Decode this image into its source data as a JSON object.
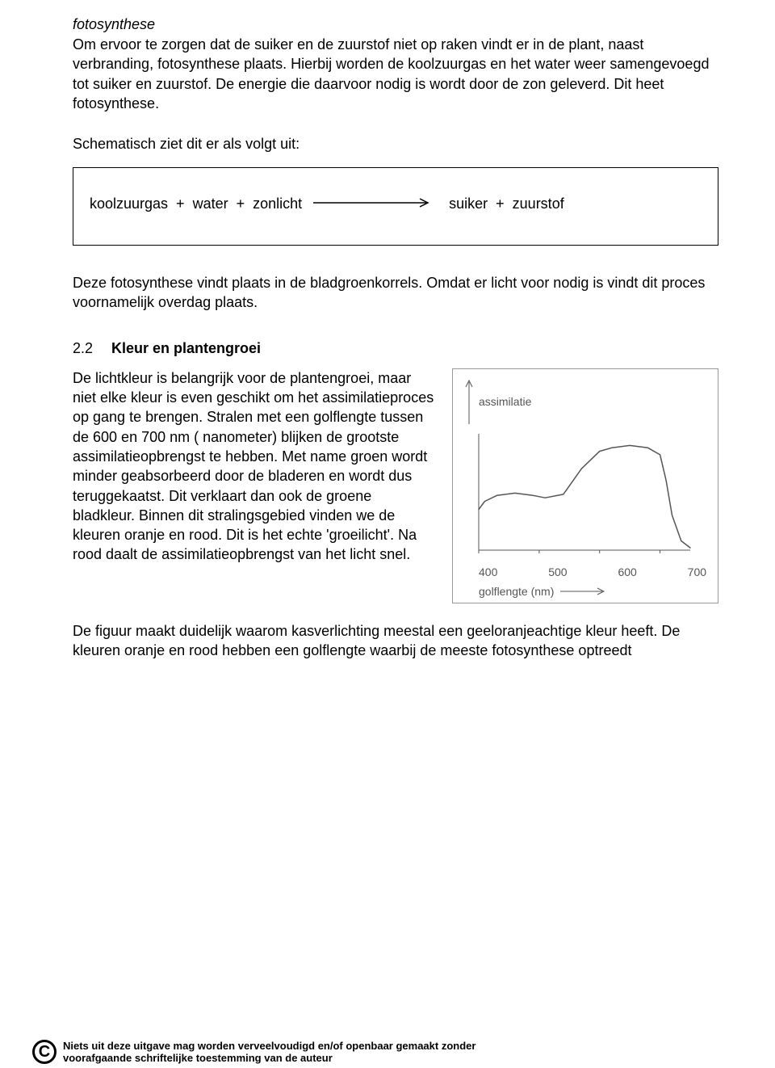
{
  "title": "fotosynthese",
  "intro": "Om ervoor te zorgen dat de suiker en de zuurstof niet op raken vindt er in de plant, naast verbranding, fotosynthese plaats. Hierbij worden de koolzuurgas en het water weer samengevoegd tot suiker en zuurstof. De energie die daarvoor nodig is wordt door de zon geleverd. Dit heet fotosynthese.",
  "schematic_label": "Schematisch ziet dit er als volgt uit:",
  "equation": {
    "left": "koolzuurgas  +  water  +  zonlicht",
    "right": "suiker  +  zuurstof"
  },
  "after_box": "Deze fotosynthese vindt plaats in de bladgroenkorrels. Omdat er licht voor nodig is vindt dit proces voornamelijk overdag plaats.",
  "section": {
    "num": "2.2",
    "title": "Kleur en plantengroei",
    "body": "De lichtkleur is belangrijk voor  de plantengroei, maar niet elke kleur is even geschikt om het assimilatieproces op gang te brengen. Stralen met een golflengte tussen de 600 en 700 nm ( nanometer) blijken de grootste assimilatieopbrengst te hebben. Met name groen wordt minder geabsorbeerd door de bladeren en wordt dus teruggekaatst. Dit verklaart dan ook de groene bladkleur. Binnen dit stralingsgebied vinden we de kleuren oranje en rood. Dit is het echte 'groeilicht'. Na rood daalt de assimilatieopbrengst van het licht snel."
  },
  "after_figure": "De figuur maakt duidelijk waarom kasverlichting meestal een geeloranjeachtige kleur heeft. De kleuren oranje en rood hebben een golflengte waarbij de meeste fotosynthese optreedt",
  "chart": {
    "type": "line",
    "y_label": "assimilatie",
    "x_axis_label": "golflengte (nm)",
    "xlim": [
      400,
      750
    ],
    "xtick_labels": [
      "400",
      "500",
      "600",
      "700"
    ],
    "xtick_positions": [
      400,
      500,
      600,
      700
    ],
    "line_color": "#555555",
    "line_width": 1.5,
    "background_color": "#ffffff",
    "border_color": "#999999",
    "label_color": "#555555",
    "label_fontsize": 14,
    "points": [
      [
        400,
        35
      ],
      [
        410,
        42
      ],
      [
        430,
        47
      ],
      [
        460,
        49
      ],
      [
        490,
        47
      ],
      [
        510,
        45
      ],
      [
        540,
        48
      ],
      [
        570,
        70
      ],
      [
        600,
        85
      ],
      [
        620,
        88
      ],
      [
        650,
        90
      ],
      [
        680,
        88
      ],
      [
        700,
        82
      ],
      [
        710,
        60
      ],
      [
        720,
        30
      ],
      [
        735,
        8
      ],
      [
        750,
        2
      ]
    ]
  },
  "footer": {
    "icon_letter": "C",
    "line1": "Niets uit deze uitgave mag worden verveelvoudigd en/of openbaar gemaakt zonder",
    "line2": "voorafgaande schriftelijke toestemming van de auteur"
  }
}
